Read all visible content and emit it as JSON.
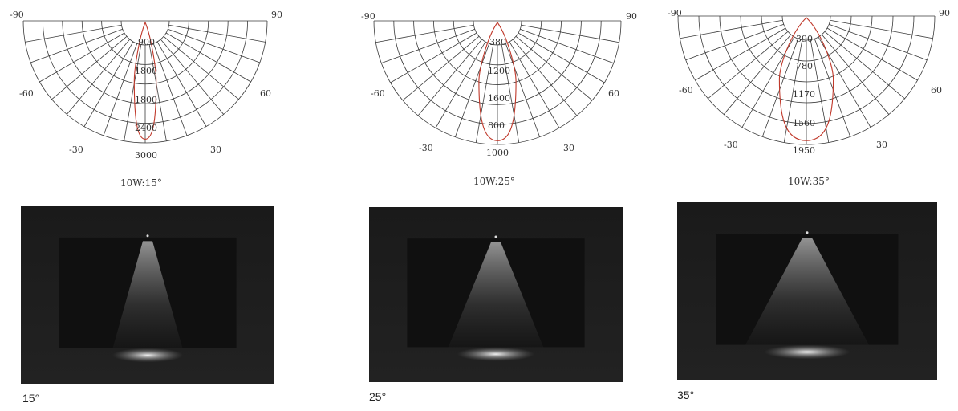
{
  "diagrams": [
    {
      "caption": "10W:15°",
      "angle_labels": {
        "left90": "-90",
        "right90": "90",
        "left60": "-60",
        "right60": "60",
        "left30": "-30",
        "right30": "30"
      },
      "ring_values": [
        "900",
        "1800",
        "1800",
        "2400",
        "3000"
      ],
      "curve_rel_width": 0.09
    },
    {
      "caption": "10W:25°",
      "angle_labels": {
        "left90": "-90",
        "right90": "90",
        "left60": "-60",
        "right60": "60",
        "left30": "-30",
        "right30": "30"
      },
      "ring_values": [
        "380",
        "1200",
        "1600",
        "800",
        "1000"
      ],
      "curve_rel_width": 0.15
    },
    {
      "caption": "10W:35°",
      "angle_labels": {
        "left90": "-90",
        "right90": "90",
        "left60": "-60",
        "right60": "60",
        "left30": "-30",
        "right30": "30"
      },
      "ring_values": [
        "390",
        "780",
        "1170",
        "1560",
        "1950"
      ],
      "curve_rel_width": 0.21
    }
  ],
  "photos": [
    {
      "label": "15°",
      "beam_spread": 0.55
    },
    {
      "label": "25°",
      "beam_spread": 0.75
    },
    {
      "label": "35°",
      "beam_spread": 0.95
    }
  ]
}
